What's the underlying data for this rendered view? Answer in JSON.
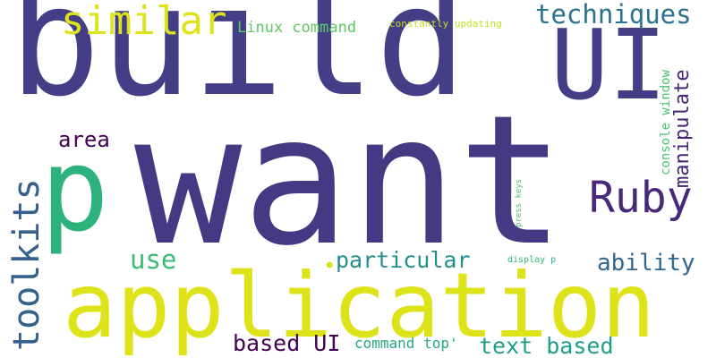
{
  "words": {
    "build": {
      "text": "build",
      "color": "#433e85"
    },
    "want": {
      "text": "want",
      "color": "#443a83"
    },
    "p": {
      "text": "p",
      "color": "#2db27d"
    },
    "application": {
      "text": "application",
      "color": "#dde318"
    },
    "similar": {
      "text": "similar",
      "color": "#dde318"
    },
    "ui": {
      "text": "UI",
      "color": "#433e85"
    },
    "techniques": {
      "text": "techniques",
      "color": "#2c728e"
    },
    "linux": {
      "text": "Linux command",
      "color": "#5ec962"
    },
    "constantly": {
      "text": "constantly updating",
      "color": "#c2df23"
    },
    "manipulate": {
      "text": "manipulate",
      "color": "#482475"
    },
    "console": {
      "text": "console window",
      "color": "#4ac16d"
    },
    "ruby": {
      "text": "Ruby",
      "color": "#482878"
    },
    "toolkits": {
      "text": "toolkits",
      "color": "#355f8d"
    },
    "area": {
      "text": "area",
      "color": "#440154"
    },
    "use": {
      "text": "use",
      "color": "#3bbb75"
    },
    "particular": {
      "text": "particular",
      "color": "#218f8d"
    },
    "dot": {
      "text": "•",
      "color": "#dde318"
    },
    "ability": {
      "text": "ability",
      "color": "#31668e"
    },
    "presskeys": {
      "text": "press keys",
      "color": "#4ac16d"
    },
    "displayp": {
      "text": "display p",
      "color": "#35b779"
    },
    "basedui": {
      "text": "based UI",
      "color": "#440154"
    },
    "commandtop": {
      "text": "command top'",
      "color": "#22a884"
    },
    "textbased": {
      "text": "text based",
      "color": "#1f9e89"
    }
  }
}
